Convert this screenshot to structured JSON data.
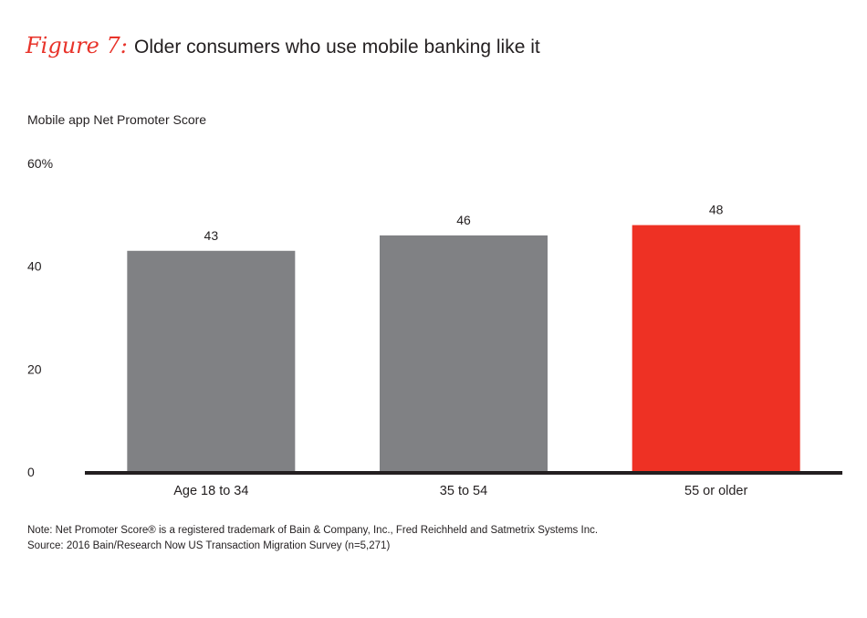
{
  "figure": {
    "label": "Figure 7:",
    "title": "Older consumers who use mobile banking like it"
  },
  "chart_data": {
    "type": "bar",
    "title": "Older consumers who use mobile banking like it",
    "ylabel": "Mobile app Net Promoter Score",
    "xlabel": "",
    "categories": [
      "Age 18 to 34",
      "35 to 54",
      "55 or older"
    ],
    "values": [
      43,
      46,
      48
    ],
    "data_labels": [
      "43",
      "46",
      "48"
    ],
    "ylim": [
      0,
      60
    ],
    "yticks": [
      0,
      20,
      40,
      60
    ],
    "ytick_labels": [
      "0",
      "20",
      "40",
      "60%"
    ],
    "colors": [
      "#808184",
      "#808184",
      "#ee3124"
    ],
    "axis_color": "#231f20",
    "grid": false,
    "legend": "none"
  },
  "notes": {
    "line1": "Note: Net Promoter Score® is a registered trademark of Bain & Company, Inc., Fred Reichheld and Satmetrix Systems Inc.",
    "line2": "Source: 2016 Bain/Research Now US Transaction Migration Survey (n=5,271)"
  }
}
